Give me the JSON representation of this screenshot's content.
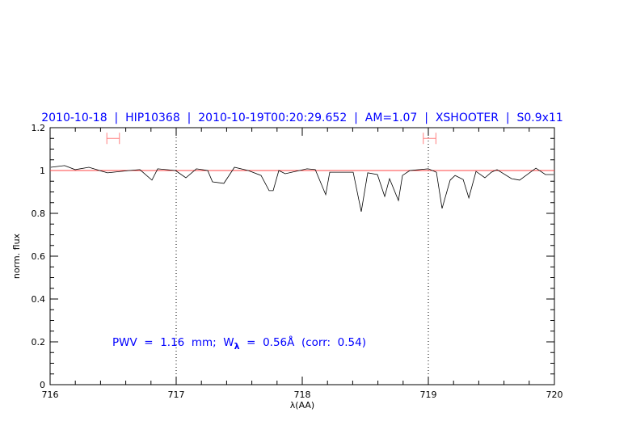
{
  "chart_data": {
    "type": "line",
    "title": "2010-10-18  |  HIP10368  |  2010-10-19T00:20:29.652  |  AM=1.07  |  XSHOOTER  |  S0.9x11",
    "xlabel": "λ(AA)",
    "ylabel": "norm. flux",
    "xlim": [
      716,
      720
    ],
    "ylim": [
      0,
      1.2
    ],
    "xticks": [
      "716",
      "717",
      "718",
      "719",
      "720"
    ],
    "yticks": [
      "0",
      "0.2",
      "0.4",
      "0.6",
      "0.8",
      "1",
      "1.2"
    ],
    "grid": false,
    "reference_line": {
      "y": 1,
      "color": "#ff4444"
    },
    "vertical_markers": [
      717,
      719
    ],
    "intervals": [
      {
        "x": [
          716.45,
          716.55
        ],
        "y": 1.15,
        "color": "#ff8080"
      },
      {
        "x": [
          718.96,
          719.06
        ],
        "y": 1.15,
        "color": "#ff8080"
      }
    ],
    "annotation": {
      "prefix": "PWV  =  1.16  mm;  W",
      "sub": "λ",
      "suffix": "  =  0.56Å  (corr:  0.54)"
    },
    "series": [
      {
        "color": "#000000",
        "x": [
          716.006,
          716.115,
          716.199,
          716.308,
          716.455,
          716.628,
          716.712,
          716.808,
          716.853,
          716.994,
          717.077,
          717.16,
          717.25,
          717.288,
          717.378,
          717.462,
          717.571,
          717.673,
          717.737,
          717.769,
          717.814,
          717.865,
          718.038,
          718.103,
          718.186,
          718.218,
          718.404,
          718.468,
          718.519,
          718.596,
          718.654,
          718.692,
          718.763,
          718.795,
          718.853,
          719.0,
          719.064,
          719.109,
          719.173,
          719.212,
          719.276,
          719.321,
          719.378,
          719.449,
          719.5,
          719.545,
          719.66,
          719.724,
          719.853,
          719.929,
          719.994
        ],
        "y": [
          1.015,
          1.023,
          1.004,
          1.015,
          0.989,
          1.0,
          1.004,
          0.955,
          1.008,
          1.0,
          0.966,
          1.008,
          1.0,
          0.947,
          0.94,
          1.015,
          1.0,
          0.977,
          0.906,
          0.906,
          1.0,
          0.985,
          1.008,
          1.004,
          0.887,
          0.992,
          0.992,
          0.808,
          0.989,
          0.981,
          0.879,
          0.962,
          0.86,
          0.977,
          1.0,
          1.008,
          0.992,
          0.823,
          0.955,
          0.977,
          0.958,
          0.872,
          0.996,
          0.966,
          0.992,
          1.004,
          0.962,
          0.955,
          1.011,
          0.981,
          0.981
        ]
      }
    ]
  }
}
